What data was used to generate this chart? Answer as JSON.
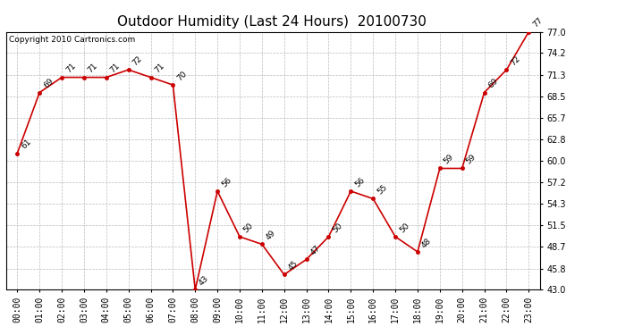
{
  "title": "Outdoor Humidity (Last 24 Hours)  20100730",
  "copyright": "Copyright 2010 Cartronics.com",
  "x_labels": [
    "00:00",
    "01:00",
    "02:00",
    "03:00",
    "04:00",
    "05:00",
    "06:00",
    "07:00",
    "08:00",
    "09:00",
    "10:00",
    "11:00",
    "12:00",
    "13:00",
    "14:00",
    "15:00",
    "16:00",
    "17:00",
    "18:00",
    "19:00",
    "20:00",
    "21:00",
    "22:00",
    "23:00"
  ],
  "y_values": [
    61,
    69,
    71,
    71,
    71,
    72,
    71,
    70,
    43,
    56,
    50,
    49,
    45,
    47,
    50,
    56,
    55,
    50,
    48,
    59,
    59,
    69,
    72,
    77
  ],
  "annotations": [
    "61",
    "69",
    "71",
    "71",
    "71",
    "72",
    "71",
    "70",
    "43",
    "56",
    "50",
    "49",
    "45",
    "47",
    "50",
    "56",
    "55",
    "50",
    "48",
    "59",
    "59",
    "69",
    "72",
    "77"
  ],
  "line_color": "#cc0000",
  "marker_color": "#cc0000",
  "bg_color": "#ffffff",
  "grid_color": "#bbbbbb",
  "ylim_min": 43.0,
  "ylim_max": 77.0,
  "yticks": [
    43.0,
    45.8,
    48.7,
    51.5,
    54.3,
    57.2,
    60.0,
    62.8,
    65.7,
    68.5,
    71.3,
    74.2,
    77.0
  ],
  "title_fontsize": 11,
  "annotation_fontsize": 6.5,
  "copyright_fontsize": 6.5,
  "tick_fontsize": 7,
  "ylabel_fontsize": 7
}
